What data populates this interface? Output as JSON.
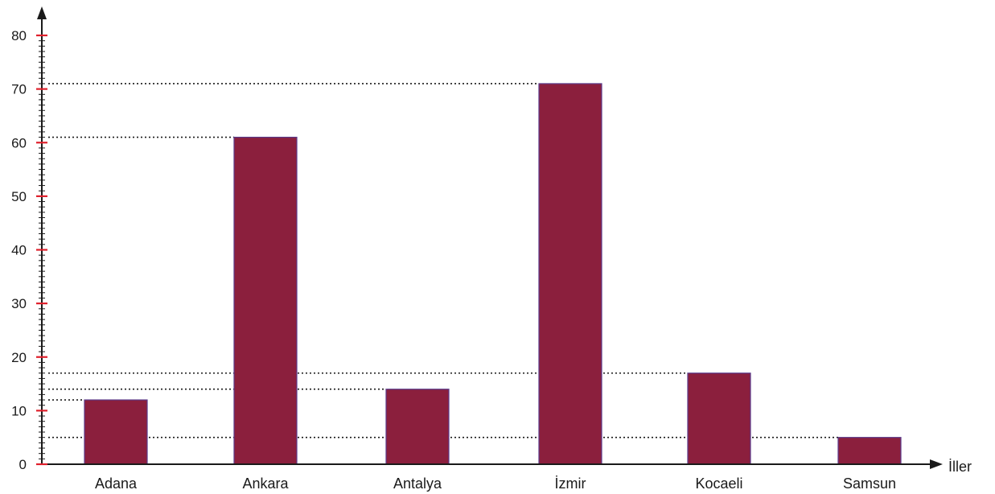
{
  "chart_data": {
    "type": "bar",
    "categories": [
      "Adana",
      "Ankara",
      "Antalya",
      "İzmir",
      "Kocaeli",
      "Samsun"
    ],
    "values": [
      12,
      61,
      14,
      71,
      17,
      5
    ],
    "title": "",
    "xlabel": "İller",
    "ylabel": "",
    "ylim": [
      0,
      80
    ],
    "yticks": [
      "0",
      "10",
      "20",
      "30",
      "40",
      "50",
      "60",
      "70",
      "80"
    ],
    "minor_tick_step": 1,
    "grid": false,
    "reference_lines": true
  },
  "colors": {
    "bar_fill": "#8b1f3d",
    "bar_stroke": "#5a3a8a",
    "axis": "#1a1a1a",
    "major_tick": "#e0202c",
    "reference_line": "#1a1a1a"
  }
}
